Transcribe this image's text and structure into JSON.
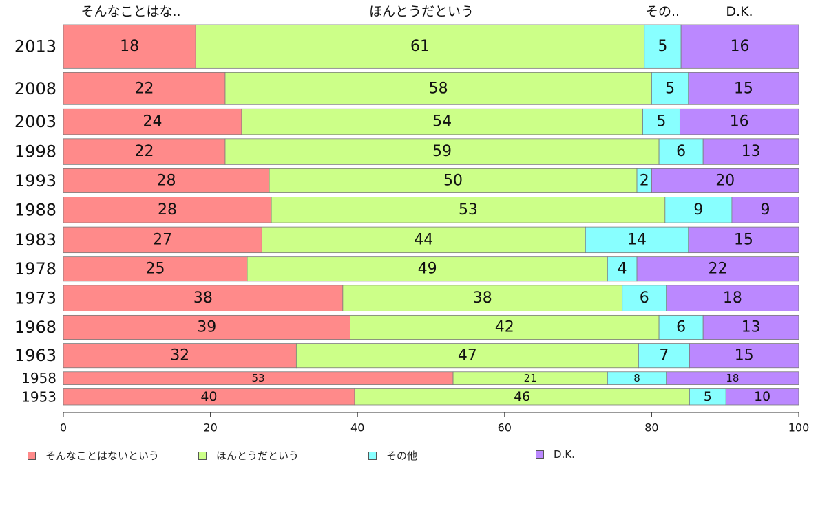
{
  "chart_data": {
    "type": "bar",
    "orientation": "horizontal",
    "stacked": true,
    "categories": [
      "2013",
      "2008",
      "2003",
      "1998",
      "1993",
      "1988",
      "1983",
      "1978",
      "1973",
      "1968",
      "1963",
      "1958",
      "1953"
    ],
    "bar_weights": [
      1.35,
      1.0,
      0.8,
      0.8,
      0.75,
      0.8,
      0.8,
      0.75,
      0.8,
      0.75,
      0.75,
      0.4,
      0.5
    ],
    "series": [
      {
        "name": "そんなことはないという",
        "short_label": "そんなことはな..",
        "color": "#ff8a8a",
        "values": [
          18,
          22,
          24,
          22,
          28,
          28,
          27,
          25,
          38,
          39,
          32,
          53,
          40
        ]
      },
      {
        "name": "ほんとうだという",
        "short_label": "ほんとうだという",
        "color": "#ccff88",
        "values": [
          61,
          58,
          54,
          59,
          50,
          53,
          44,
          49,
          38,
          42,
          47,
          21,
          46
        ]
      },
      {
        "name": "その他",
        "short_label": "その..",
        "color": "#88ffff",
        "values": [
          5,
          5,
          5,
          6,
          2,
          9,
          14,
          4,
          6,
          6,
          7,
          8,
          5
        ]
      },
      {
        "name": "D.K.",
        "short_label": "D.K.",
        "color": "#bb88ff",
        "values": [
          16,
          15,
          16,
          13,
          20,
          9,
          15,
          22,
          18,
          13,
          15,
          18,
          10
        ]
      }
    ],
    "xlim": [
      0,
      100
    ],
    "xticks": [
      0,
      20,
      40,
      60,
      80,
      100
    ],
    "legend_position": "bottom"
  }
}
